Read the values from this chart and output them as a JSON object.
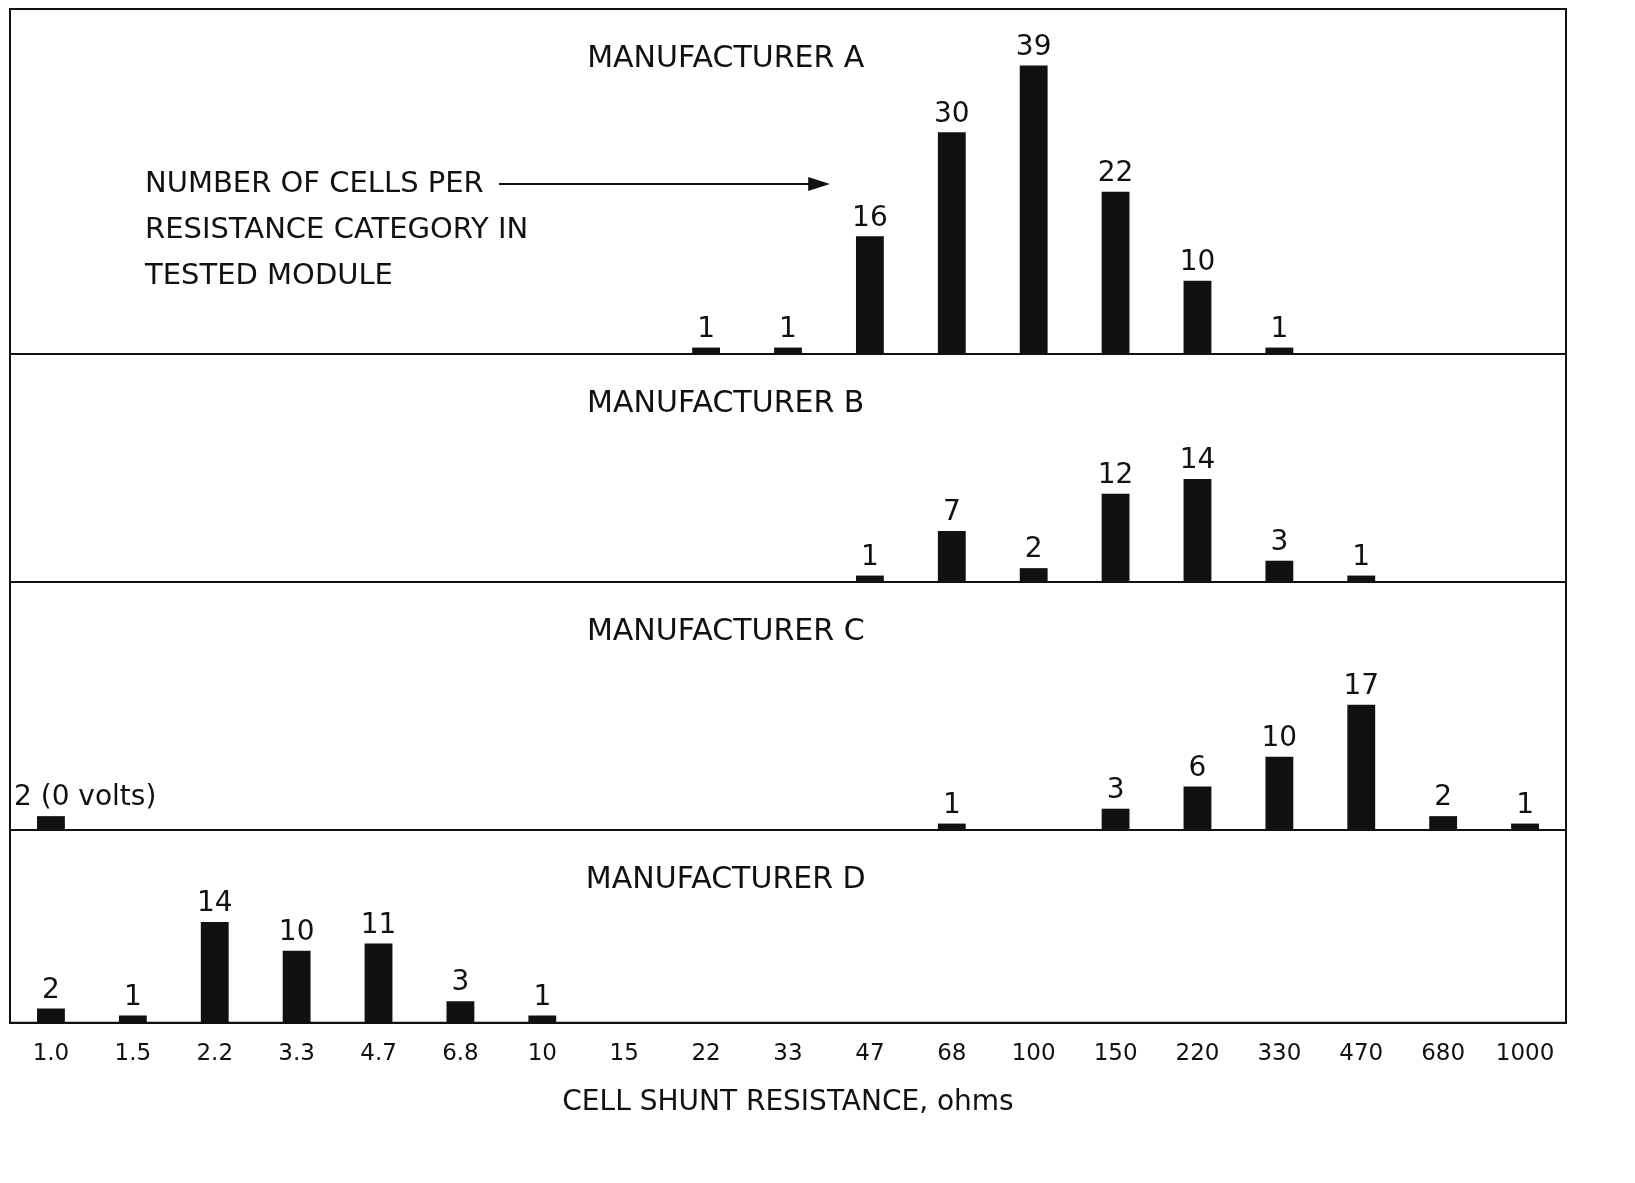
{
  "chart_data": [
    {
      "type": "bar",
      "title": "MANUFACTURER A",
      "categories": [
        "1.0",
        "1.5",
        "2.2",
        "3.3",
        "4.7",
        "6.8",
        "10",
        "15",
        "22",
        "33",
        "47",
        "68",
        "100",
        "150",
        "220",
        "330",
        "470",
        "680",
        "1000"
      ],
      "values": [
        null,
        null,
        null,
        null,
        null,
        null,
        null,
        null,
        1,
        1,
        16,
        30,
        39,
        22,
        10,
        1,
        null,
        null,
        null
      ],
      "color": "#111111",
      "data_labels": true,
      "tick_labels": false,
      "grid": false,
      "legend": false,
      "annotations": [
        "NUMBER OF CELLS PER RESISTANCE CATEGORY IN TESTED MODULE"
      ]
    },
    {
      "type": "bar",
      "title": "MANUFACTURER B",
      "categories": [
        "1.0",
        "1.5",
        "2.2",
        "3.3",
        "4.7",
        "6.8",
        "10",
        "15",
        "22",
        "33",
        "47",
        "68",
        "100",
        "150",
        "220",
        "330",
        "470",
        "680",
        "1000"
      ],
      "values": [
        null,
        null,
        null,
        null,
        null,
        null,
        null,
        null,
        null,
        null,
        1,
        7,
        2,
        12,
        14,
        3,
        1,
        null,
        null
      ],
      "color": "#111111",
      "data_labels": true,
      "tick_labels": false,
      "grid": false,
      "legend": false
    },
    {
      "type": "bar",
      "title": "MANUFACTURER C",
      "categories": [
        "1.0",
        "1.5",
        "2.2",
        "3.3",
        "4.7",
        "6.8",
        "10",
        "15",
        "22",
        "33",
        "47",
        "68",
        "100",
        "150",
        "220",
        "330",
        "470",
        "680",
        "1000"
      ],
      "values": [
        2,
        null,
        null,
        null,
        null,
        null,
        null,
        null,
        null,
        null,
        null,
        1,
        null,
        3,
        6,
        10,
        17,
        2,
        1
      ],
      "value_labels": [
        "2 (0 volts)",
        null,
        null,
        null,
        null,
        null,
        null,
        null,
        null,
        null,
        null,
        "1",
        null,
        "3",
        "6",
        "10",
        "17",
        "2",
        "1"
      ],
      "color": "#111111",
      "tick_labels": false,
      "grid": false,
      "legend": false
    },
    {
      "type": "bar",
      "title": "MANUFACTURER D",
      "xlabel": "CELL SHUNT RESISTANCE, ohms",
      "categories": [
        "1.0",
        "1.5",
        "2.2",
        "3.3",
        "4.7",
        "6.8",
        "10",
        "15",
        "22",
        "33",
        "47",
        "68",
        "100",
        "150",
        "220",
        "330",
        "470",
        "680",
        "1000"
      ],
      "values": [
        2,
        1,
        14,
        10,
        11,
        3,
        1,
        null,
        null,
        null,
        null,
        null,
        null,
        null,
        null,
        null,
        null,
        null,
        null
      ],
      "color": "#111111",
      "data_labels": true,
      "tick_labels": "x",
      "grid": false,
      "legend": false
    }
  ]
}
